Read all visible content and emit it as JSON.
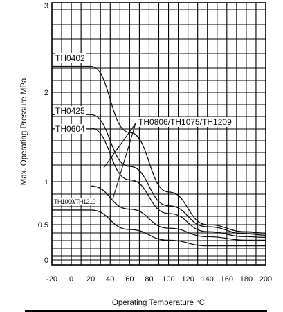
{
  "chart_data": {
    "type": "line",
    "title": "",
    "xlabel": "Operating Temperature °C",
    "ylabel": "Max. Operating Pressure MPa",
    "xlim": [
      -20,
      200
    ],
    "ylim": [
      0,
      3
    ],
    "grid": true,
    "x_ticks": [
      "-20",
      "0",
      "20",
      "40",
      "60",
      "80",
      "100",
      "120",
      "140",
      "160",
      "180",
      "200"
    ],
    "y_ticks": [
      {
        "value": 3,
        "label": "3"
      },
      {
        "value": 2,
        "label": "2"
      },
      {
        "value": 1,
        "label": "1"
      },
      {
        "value": 0.5,
        "label": "0.5"
      },
      {
        "value": 0,
        "label": "0"
      }
    ],
    "series": [
      {
        "name": "TH0402",
        "x": [
          -20,
          20,
          60,
          100,
          140,
          180,
          200
        ],
        "y": [
          2.3,
          2.3,
          1.55,
          0.88,
          0.5,
          0.4,
          0.38
        ]
      },
      {
        "name": "TH0425",
        "x": [
          -20,
          20,
          60,
          100,
          140,
          180,
          200
        ],
        "y": [
          1.75,
          1.75,
          1.17,
          0.72,
          0.47,
          0.37,
          0.35
        ]
      },
      {
        "name": "TH0604",
        "x": [
          -20,
          20,
          60,
          100,
          140,
          180,
          200
        ],
        "y": [
          1.6,
          1.6,
          1.02,
          0.63,
          0.4,
          0.33,
          0.32
        ]
      },
      {
        "name": "TH0806/TH1075/TH1209",
        "x": [
          20,
          60,
          100,
          140,
          180,
          200
        ],
        "y": [
          0.95,
          0.68,
          0.45,
          0.33,
          0.28,
          0.28
        ]
      },
      {
        "name": "TH1009/TH1210",
        "x": [
          -20,
          20,
          60,
          100,
          140,
          180,
          200
        ],
        "y": [
          0.67,
          0.67,
          0.43,
          0.28,
          0.2,
          0.2,
          0.2
        ]
      }
    ]
  }
}
